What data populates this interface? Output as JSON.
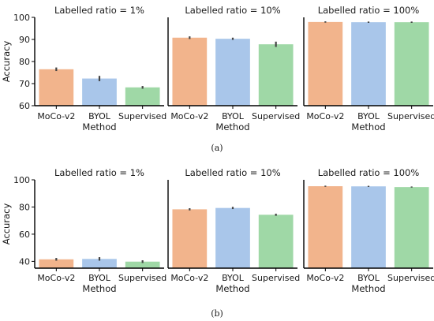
{
  "colors": {
    "MoCo-v2": "#f2b48c",
    "BYOL": "#a9c6ea",
    "Supervised": "#9fd8a6",
    "error_bar": "#444444",
    "axis": "#000000"
  },
  "captions": [
    "(a)",
    "(b)"
  ],
  "chart_data": [
    {
      "type": "bar",
      "panel": "a",
      "title": "Labelled ratio = 1%",
      "xlabel": "Method",
      "ylabel": "Accuracy",
      "ylim": [
        60,
        100
      ],
      "yticks": [
        60,
        70,
        80,
        90,
        100
      ],
      "categories": [
        "MoCo-v2",
        "BYOL",
        "Supervised"
      ],
      "values": [
        76.5,
        72.3,
        68.3
      ],
      "errors": [
        0.8,
        1.2,
        0.6
      ]
    },
    {
      "type": "bar",
      "panel": "a",
      "title": "Labelled ratio = 10%",
      "xlabel": "Method",
      "ylabel": "",
      "ylim": [
        60,
        100
      ],
      "yticks": [],
      "categories": [
        "MoCo-v2",
        "BYOL",
        "Supervised"
      ],
      "values": [
        90.8,
        90.3,
        87.8
      ],
      "errors": [
        0.6,
        0.5,
        1.2
      ]
    },
    {
      "type": "bar",
      "panel": "a",
      "title": "Labelled ratio = 100%",
      "xlabel": "Method",
      "ylabel": "",
      "ylim": [
        60,
        100
      ],
      "yticks": [],
      "categories": [
        "MoCo-v2",
        "BYOL",
        "Supervised"
      ],
      "values": [
        97.9,
        97.8,
        97.8
      ],
      "errors": [
        0.3,
        0.3,
        0.3
      ]
    },
    {
      "type": "bar",
      "panel": "b",
      "title": "Labelled ratio = 1%",
      "xlabel": "Method",
      "ylabel": "Accuracy",
      "ylim": [
        35,
        100
      ],
      "yticks": [
        40,
        60,
        80,
        100
      ],
      "categories": [
        "MoCo-v2",
        "BYOL",
        "Supervised"
      ],
      "values": [
        41.5,
        41.8,
        39.8
      ],
      "errors": [
        1.0,
        1.3,
        1.0
      ]
    },
    {
      "type": "bar",
      "panel": "b",
      "title": "Labelled ratio = 10%",
      "xlabel": "Method",
      "ylabel": "",
      "ylim": [
        35,
        100
      ],
      "yticks": [],
      "categories": [
        "MoCo-v2",
        "BYOL",
        "Supervised"
      ],
      "values": [
        78.3,
        79.3,
        74.3
      ],
      "errors": [
        0.8,
        0.8,
        0.8
      ]
    },
    {
      "type": "bar",
      "panel": "b",
      "title": "Labelled ratio = 100%",
      "xlabel": "Method",
      "ylabel": "",
      "ylim": [
        35,
        100
      ],
      "yticks": [],
      "categories": [
        "MoCo-v2",
        "BYOL",
        "Supervised"
      ],
      "values": [
        95.3,
        95.2,
        94.7
      ],
      "errors": [
        0.4,
        0.4,
        0.4
      ]
    }
  ]
}
